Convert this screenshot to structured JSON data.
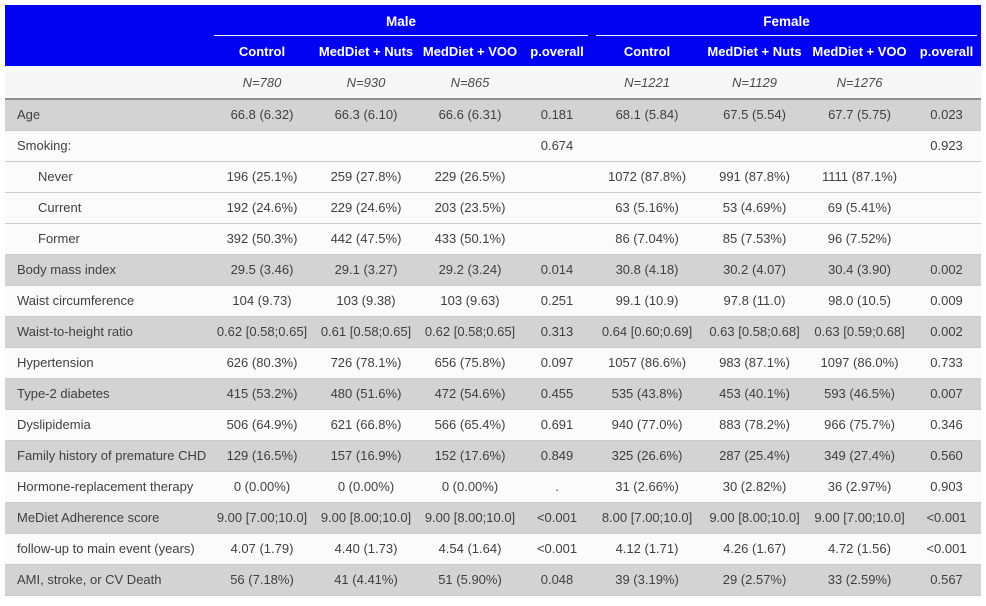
{
  "colors": {
    "header_bg": "#0202f2",
    "stripe_gray": "#d3d3d3",
    "row_white": "#fbfbfb",
    "heavy_line": "#8f8f8f"
  },
  "header": {
    "groups": [
      {
        "label": "Male",
        "columns": [
          "Control",
          "MedDiet + Nuts",
          "MedDiet + VOO",
          "p.overall"
        ],
        "ns": [
          "N=780",
          "N=930",
          "N=865",
          ""
        ]
      },
      {
        "label": "Female",
        "columns": [
          "Control",
          "MedDiet + Nuts",
          "MedDiet + VOO",
          "p.overall"
        ],
        "ns": [
          "N=1221",
          "N=1129",
          "N=1276",
          ""
        ]
      }
    ]
  },
  "rows": [
    {
      "label": "Age",
      "indent": false,
      "shade": "gray",
      "cells": [
        "66.8 (6.32)",
        "66.3 (6.10)",
        "66.6 (6.31)",
        "0.181",
        "68.1 (5.84)",
        "67.5 (5.54)",
        "67.7 (5.75)",
        "0.023"
      ]
    },
    {
      "label": "Smoking:",
      "indent": false,
      "shade": "white",
      "cells": [
        "",
        "",
        "",
        "0.674",
        "",
        "",
        "",
        "0.923"
      ]
    },
    {
      "label": "Never",
      "indent": true,
      "shade": "white",
      "cells": [
        "196 (25.1%)",
        "259 (27.8%)",
        "229 (26.5%)",
        "",
        "1072 (87.8%)",
        "991 (87.8%)",
        "1111 (87.1%)",
        ""
      ]
    },
    {
      "label": "Current",
      "indent": true,
      "shade": "white",
      "cells": [
        "192 (24.6%)",
        "229 (24.6%)",
        "203 (23.5%)",
        "",
        "63 (5.16%)",
        "53 (4.69%)",
        "69 (5.41%)",
        ""
      ]
    },
    {
      "label": "Former",
      "indent": true,
      "shade": "white",
      "cells": [
        "392 (50.3%)",
        "442 (47.5%)",
        "433 (50.1%)",
        "",
        "86 (7.04%)",
        "85 (7.53%)",
        "96 (7.52%)",
        ""
      ]
    },
    {
      "label": "Body mass index",
      "indent": false,
      "shade": "gray",
      "cells": [
        "29.5 (3.46)",
        "29.1 (3.27)",
        "29.2 (3.24)",
        "0.014",
        "30.8 (4.18)",
        "30.2 (4.07)",
        "30.4 (3.90)",
        "0.002"
      ]
    },
    {
      "label": "Waist circumference",
      "indent": false,
      "shade": "white",
      "cells": [
        "104 (9.73)",
        "103 (9.38)",
        "103 (9.63)",
        "0.251",
        "99.1 (10.9)",
        "97.8 (11.0)",
        "98.0 (10.5)",
        "0.009"
      ]
    },
    {
      "label": "Waist-to-height ratio",
      "indent": false,
      "shade": "gray",
      "cells": [
        "0.62 [0.58;0.65]",
        "0.61 [0.58;0.65]",
        "0.62 [0.58;0.65]",
        "0.313",
        "0.64 [0.60;0.69]",
        "0.63 [0.58;0.68]",
        "0.63 [0.59;0.68]",
        "0.002"
      ]
    },
    {
      "label": "Hypertension",
      "indent": false,
      "shade": "white",
      "cells": [
        "626 (80.3%)",
        "726 (78.1%)",
        "656 (75.8%)",
        "0.097",
        "1057 (86.6%)",
        "983 (87.1%)",
        "1097 (86.0%)",
        "0.733"
      ]
    },
    {
      "label": "Type-2 diabetes",
      "indent": false,
      "shade": "gray",
      "cells": [
        "415 (53.2%)",
        "480 (51.6%)",
        "472 (54.6%)",
        "0.455",
        "535 (43.8%)",
        "453 (40.1%)",
        "593 (46.5%)",
        "0.007"
      ]
    },
    {
      "label": "Dyslipidemia",
      "indent": false,
      "shade": "white",
      "cells": [
        "506 (64.9%)",
        "621 (66.8%)",
        "566 (65.4%)",
        "0.691",
        "940 (77.0%)",
        "883 (78.2%)",
        "966 (75.7%)",
        "0.346"
      ]
    },
    {
      "label": "Family history of premature CHD",
      "indent": false,
      "shade": "gray",
      "cells": [
        "129 (16.5%)",
        "157 (16.9%)",
        "152 (17.6%)",
        "0.849",
        "325 (26.6%)",
        "287 (25.4%)",
        "349 (27.4%)",
        "0.560"
      ]
    },
    {
      "label": "Hormone-replacement therapy",
      "indent": false,
      "shade": "white",
      "cells": [
        "0 (0.00%)",
        "0 (0.00%)",
        "0 (0.00%)",
        ".",
        "31 (2.66%)",
        "30 (2.82%)",
        "36 (2.97%)",
        "0.903"
      ]
    },
    {
      "label": "MeDiet Adherence score",
      "indent": false,
      "shade": "gray",
      "cells": [
        "9.00 [7.00;10.0]",
        "9.00 [8.00;10.0]",
        "9.00 [8.00;10.0]",
        "<0.001",
        "8.00 [7.00;10.0]",
        "9.00 [8.00;10.0]",
        "9.00 [7.00;10.0]",
        "<0.001"
      ]
    },
    {
      "label": "follow-up to main event (years)",
      "indent": false,
      "shade": "white",
      "cells": [
        "4.07 (1.79)",
        "4.40 (1.73)",
        "4.54 (1.64)",
        "<0.001",
        "4.12 (1.71)",
        "4.26 (1.67)",
        "4.72 (1.56)",
        "<0.001"
      ]
    },
    {
      "label": "AMI, stroke, or CV Death",
      "indent": false,
      "shade": "gray",
      "cells": [
        "56 (7.18%)",
        "41 (4.41%)",
        "51 (5.90%)",
        "0.048",
        "39 (3.19%)",
        "29 (2.57%)",
        "33 (2.59%)",
        "0.567"
      ]
    }
  ]
}
